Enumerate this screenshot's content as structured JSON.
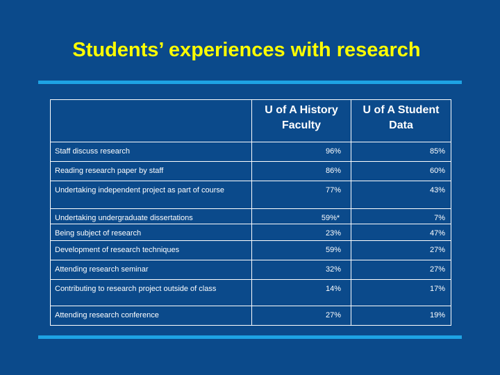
{
  "title": "Students’ experiences with research",
  "table": {
    "header": [
      "",
      "U of A History Faculty",
      "U of A Student Data"
    ],
    "rows": [
      [
        "Staff discuss research",
        "96%",
        "85%"
      ],
      [
        "Reading research paper by staff",
        "86%",
        "60%"
      ],
      [
        "Undertaking independent project as part of course",
        "77%",
        "43%"
      ],
      [
        "Undertaking undergraduate dissertations",
        "59%*",
        "7%"
      ],
      [
        "Being subject of research",
        "23%",
        "47%"
      ],
      [
        "Development of research techniques",
        "59%",
        "27%"
      ],
      [
        "Attending research seminar",
        "32%",
        "27%"
      ],
      [
        "Contributing to research project outside of class",
        "14%",
        "17%"
      ],
      [
        "Attending research conference",
        "27%",
        "19%"
      ]
    ]
  }
}
